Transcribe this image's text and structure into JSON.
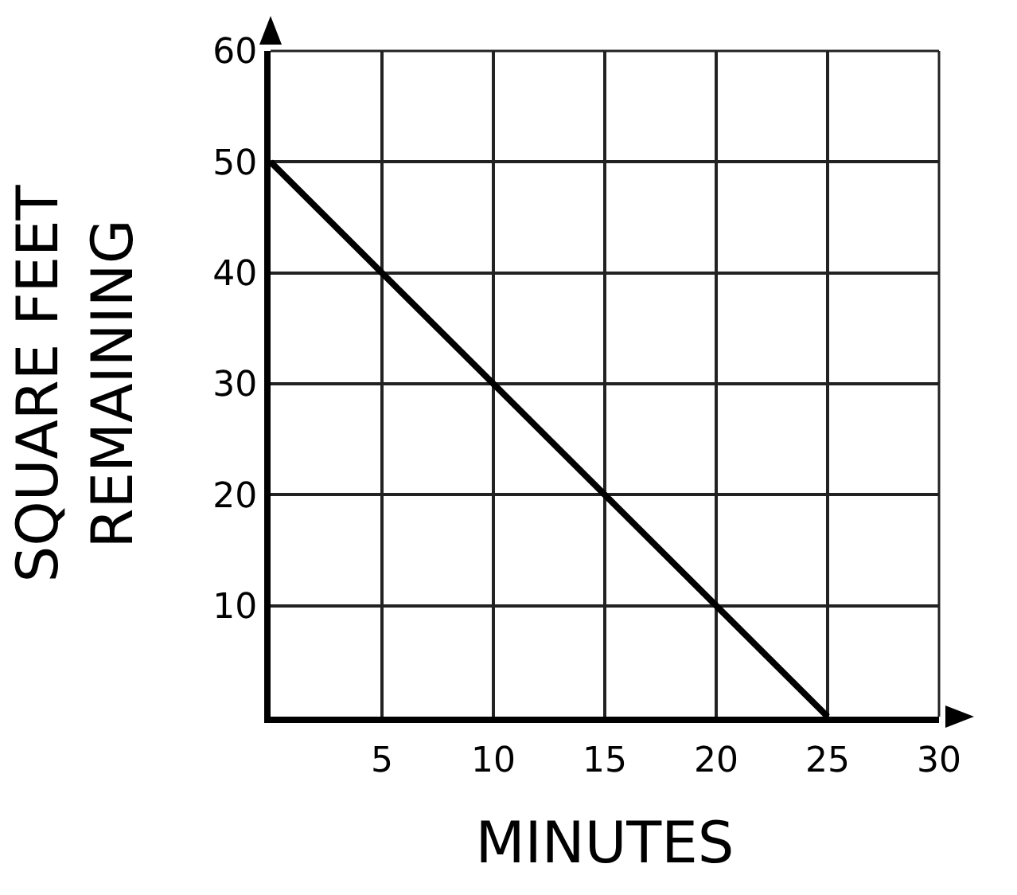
{
  "chart_data": {
    "type": "line",
    "xlabel": "MINUTES",
    "ylabel": "SQUARE FEET\nREMAINING",
    "x": [
      0,
      25
    ],
    "series": [
      {
        "color": "#000000",
        "values": [
          50,
          0
        ]
      }
    ],
    "xlim": [
      0,
      30
    ],
    "xticks": [
      5,
      10,
      15,
      20,
      25,
      30
    ],
    "ylim": [
      0,
      60
    ],
    "yticks": [
      10,
      20,
      30,
      40,
      50,
      60
    ],
    "grid": true,
    "marker": "none",
    "line_style": "solid"
  }
}
